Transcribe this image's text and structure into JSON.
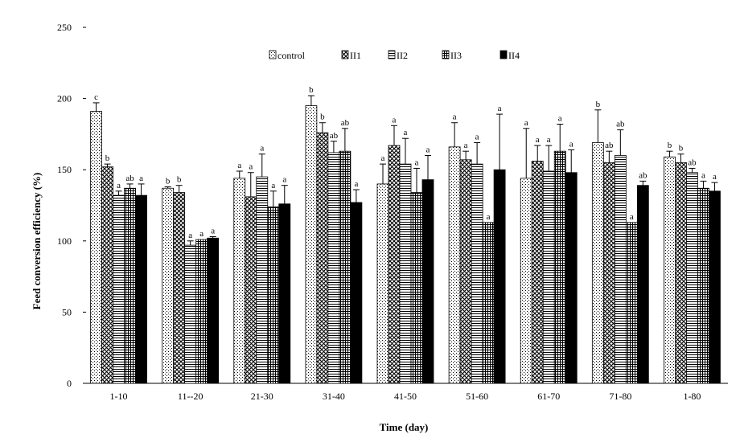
{
  "chart_data": {
    "type": "bar",
    "title": "",
    "xlabel": "Time (day)",
    "ylabel": "Feed conversion efficiency (%)",
    "ylim": [
      0,
      250
    ],
    "yticks": [
      0,
      50,
      100,
      150,
      200,
      250
    ],
    "grid": false,
    "legend_position": "top-center",
    "categories": [
      "1-10",
      "11--20",
      "21-30",
      "31-40",
      "41-50",
      "51-60",
      "61-70",
      "71-80",
      "1-80"
    ],
    "series": [
      {
        "name": "control",
        "pattern": "dots",
        "values": [
          191,
          137,
          144,
          195,
          140,
          166,
          144,
          169,
          159
        ],
        "errors": [
          6,
          1,
          5,
          7,
          14,
          17,
          35,
          23,
          4
        ],
        "labels": [
          "c",
          "b",
          "a",
          "b",
          "a",
          "a",
          "a",
          "b",
          "b"
        ]
      },
      {
        "name": "II1",
        "pattern": "crosshatch",
        "values": [
          152,
          134,
          131,
          176,
          167,
          157,
          156,
          155,
          155
        ],
        "errors": [
          2,
          5,
          17,
          7,
          14,
          6,
          11,
          8,
          6
        ],
        "labels": [
          "b",
          "b",
          "a",
          "b",
          "a",
          "a",
          "a",
          "ab",
          "b"
        ]
      },
      {
        "name": "II2",
        "pattern": "hlines",
        "values": [
          132,
          97,
          145,
          162,
          154,
          154,
          149,
          160,
          148
        ],
        "errors": [
          3,
          3,
          16,
          8,
          18,
          15,
          18,
          18,
          3
        ],
        "labels": [
          "a",
          "a",
          "a",
          "ab",
          "a",
          "a",
          "a",
          "ab",
          "ab"
        ]
      },
      {
        "name": "II3",
        "pattern": "fine-crosshatch",
        "values": [
          137,
          101,
          124,
          163,
          134,
          113,
          163,
          113,
          137
        ],
        "errors": [
          3,
          0,
          11,
          16,
          17,
          0,
          19,
          0,
          5
        ],
        "labels": [
          "ab",
          "a",
          "a",
          "ab",
          "a",
          "a",
          "a",
          "a",
          "a"
        ]
      },
      {
        "name": "II4",
        "pattern": "solid",
        "values": [
          132,
          102,
          126,
          127,
          143,
          150,
          148,
          139,
          135
        ],
        "errors": [
          8,
          1,
          13,
          9,
          17,
          39,
          16,
          3,
          6
        ],
        "labels": [
          "a",
          "a",
          "a",
          "a",
          "a",
          "a",
          "a",
          "ab",
          "a"
        ]
      }
    ],
    "colors": {
      "bar_stroke": "#000000",
      "solid_fill": "#000000",
      "background": "#ffffff"
    }
  }
}
